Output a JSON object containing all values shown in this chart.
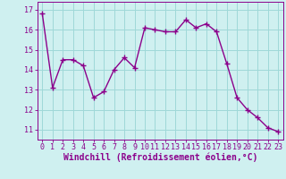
{
  "x": [
    0,
    1,
    2,
    3,
    4,
    5,
    6,
    7,
    8,
    9,
    10,
    11,
    12,
    13,
    14,
    15,
    16,
    17,
    18,
    19,
    20,
    21,
    22,
    23
  ],
  "y": [
    16.8,
    13.1,
    14.5,
    14.5,
    14.2,
    12.6,
    12.9,
    14.0,
    14.6,
    14.1,
    16.1,
    16.0,
    15.9,
    15.9,
    16.5,
    16.1,
    16.3,
    15.9,
    14.3,
    12.6,
    12.0,
    11.6,
    11.1,
    10.9
  ],
  "line_color": "#8b008b",
  "marker": "+",
  "marker_size": 4,
  "linewidth": 1.0,
  "xlabel": "Windchill (Refroidissement éolien,°C)",
  "xlabel_fontsize": 7,
  "ylabel_ticks": [
    11,
    12,
    13,
    14,
    15,
    16,
    17
  ],
  "xtick_labels": [
    "0",
    "1",
    "2",
    "3",
    "4",
    "5",
    "6",
    "7",
    "8",
    "9",
    "10",
    "11",
    "12",
    "13",
    "14",
    "15",
    "16",
    "17",
    "18",
    "19",
    "20",
    "21",
    "22",
    "23"
  ],
  "ylim": [
    10.5,
    17.4
  ],
  "xlim": [
    -0.5,
    23.5
  ],
  "bg_color": "#cff0f0",
  "grid_color": "#9fd8d8",
  "tick_fontsize": 6,
  "xlabel_fontweight": "bold"
}
